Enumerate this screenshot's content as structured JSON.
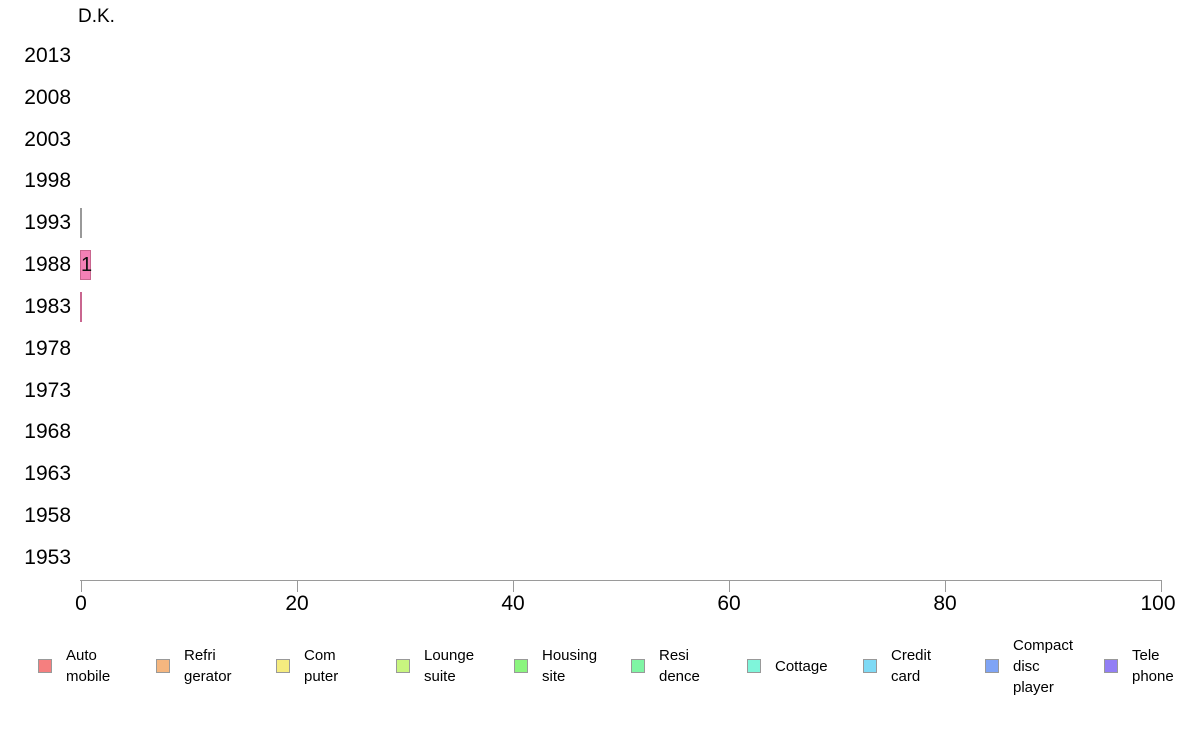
{
  "chart_data": {
    "type": "bar",
    "orientation": "horizontal",
    "title": "D.K.",
    "categories": [
      "2013",
      "2008",
      "2003",
      "1998",
      "1993",
      "1988",
      "1983",
      "1978",
      "1973",
      "1968",
      "1963",
      "1958",
      "1953"
    ],
    "x_axis": {
      "range": [
        0,
        100
      ],
      "ticks": [
        "0",
        "20",
        "40",
        "60",
        "80",
        "100"
      ],
      "grid": false
    },
    "axis_color": "#9a9a9a",
    "bars": [
      {
        "category": "1993",
        "value": 0,
        "label": "",
        "fill": "#F580B6",
        "border": "#999999"
      },
      {
        "category": "1988",
        "value": 1,
        "label": "1",
        "fill": "#F580B6",
        "border": "#C9668F"
      },
      {
        "category": "1983",
        "value": 0,
        "label": "",
        "fill": "#C9668F",
        "border": "#C9668F"
      }
    ],
    "legend": {
      "position": "bottom",
      "items": [
        {
          "label": "Auto\nmobile",
          "color": "#F57F7F"
        },
        {
          "label": "Refri\ngerator",
          "color": "#F5B67F"
        },
        {
          "label": "Com\nputer",
          "color": "#F5EC7F"
        },
        {
          "label": "Lounge\nsuite",
          "color": "#C8F57F"
        },
        {
          "label": "Housing\nsite",
          "color": "#8BF57F"
        },
        {
          "label": "Resi\ndence",
          "color": "#7FF5A4"
        },
        {
          "label": "Cottage",
          "color": "#7FF5DA"
        },
        {
          "label": "Credit\ncard",
          "color": "#7FDAF5"
        },
        {
          "label": "Compact\ndisc\nplayer",
          "color": "#7FA4F5"
        },
        {
          "label": "Tele\nphone",
          "color": "#927FF5"
        }
      ]
    }
  }
}
